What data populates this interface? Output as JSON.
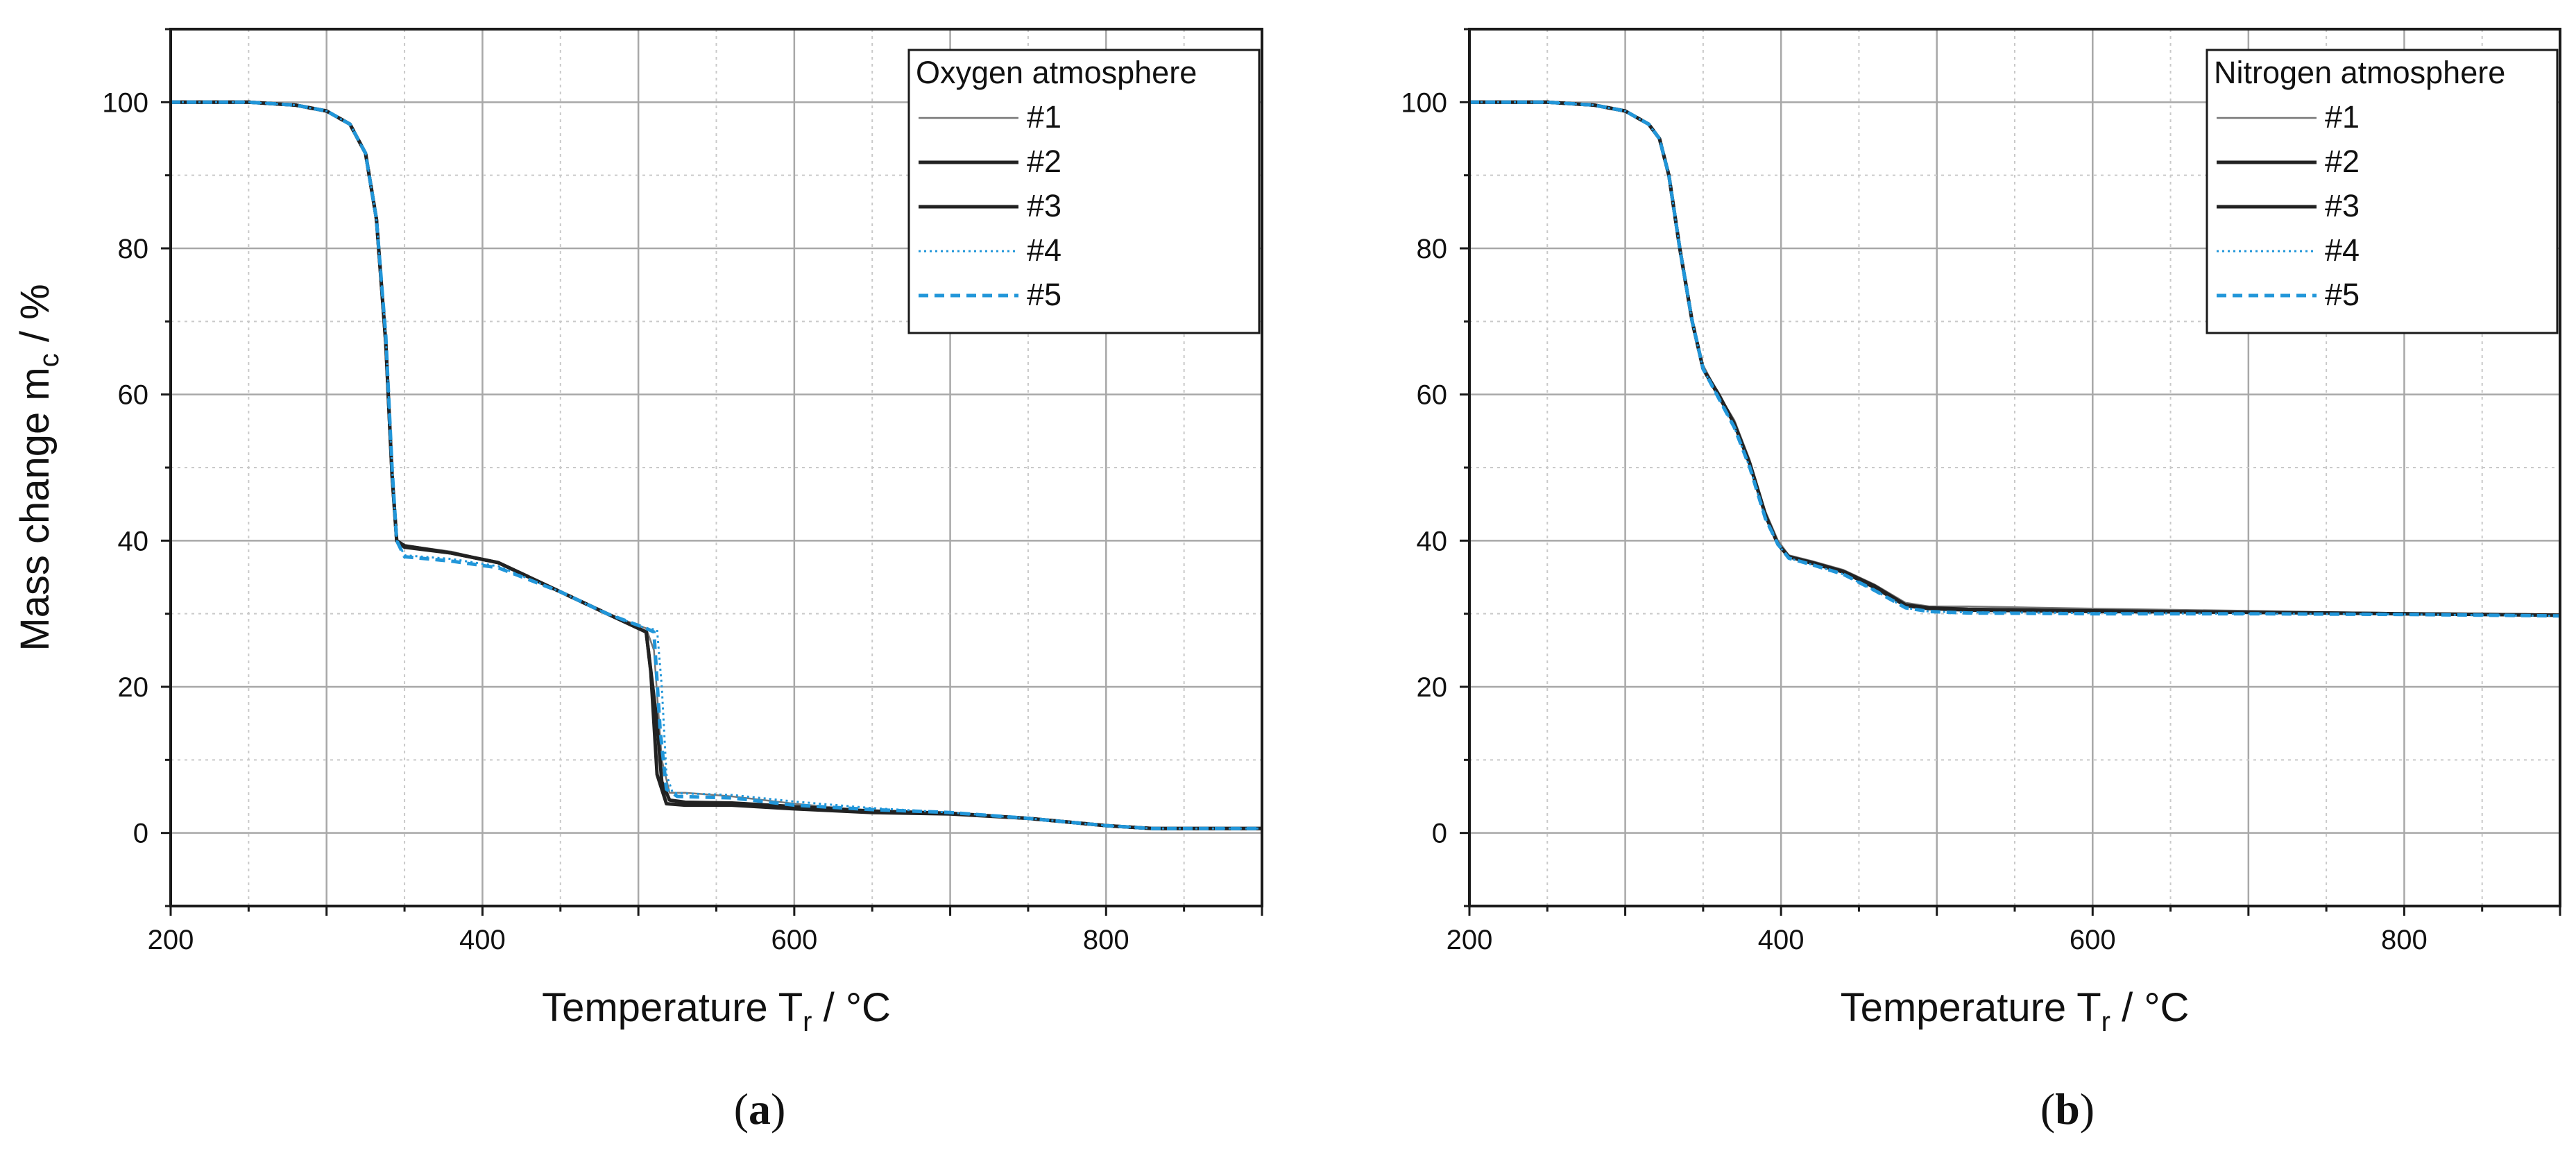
{
  "chart_data": [
    {
      "type": "line",
      "panel_caption": "a",
      "caption_open": "(",
      "caption_close": ")",
      "legend_title": "Oxygen atmosphere",
      "xlabel": {
        "main": "Temperature T",
        "sub": "r",
        "suffix": " / °C"
      },
      "ylabel": {
        "main": "Mass change m",
        "sub": "c",
        "suffix": " / %"
      },
      "xlim": [
        200,
        900
      ],
      "ylim": [
        -10,
        110
      ],
      "xticks": [
        200,
        400,
        600,
        800
      ],
      "yticks": [
        0,
        20,
        40,
        60,
        80,
        100
      ],
      "grid": true,
      "legend_position": "top-right",
      "series": [
        {
          "name": "#1",
          "color": "#777777",
          "style": "solid-thin",
          "x": [
            200,
            250,
            280,
            300,
            315,
            325,
            332,
            338,
            342,
            345,
            350,
            380,
            410,
            450,
            480,
            505,
            510,
            515,
            520,
            530,
            560,
            600,
            650,
            700,
            750,
            800,
            830,
            900
          ],
          "y": [
            100,
            100,
            99.6,
            98.8,
            97,
            93,
            84,
            68,
            50,
            40,
            39.4,
            38.5,
            37,
            33,
            30,
            28,
            25,
            10,
            5.5,
            5.5,
            5,
            4,
            3,
            2.8,
            2,
            1,
            0.6,
            0.6
          ]
        },
        {
          "name": "#2",
          "color": "#222222",
          "style": "solid",
          "x": [
            200,
            250,
            280,
            300,
            315,
            325,
            332,
            338,
            342,
            345,
            350,
            380,
            410,
            450,
            480,
            505,
            508,
            512,
            518,
            530,
            560,
            600,
            650,
            700,
            750,
            800,
            830,
            900
          ],
          "y": [
            100,
            100,
            99.6,
            98.8,
            97,
            93,
            84,
            67,
            49,
            40,
            39.3,
            38.3,
            37,
            33,
            30,
            27.5,
            22,
            8,
            4,
            3.8,
            3.8,
            3.3,
            2.8,
            2.6,
            2,
            1,
            0.6,
            0.6
          ]
        },
        {
          "name": "#3",
          "color": "#222222",
          "style": "solid",
          "x": [
            200,
            250,
            280,
            300,
            315,
            325,
            332,
            338,
            342,
            345,
            350,
            380,
            410,
            450,
            480,
            505,
            512,
            515,
            520,
            530,
            560,
            600,
            650,
            700,
            750,
            800,
            830,
            900
          ],
          "y": [
            100,
            100,
            99.6,
            98.8,
            97,
            93,
            84,
            67,
            49,
            40,
            39.1,
            38.3,
            37,
            33,
            30,
            27.5,
            15,
            7,
            4.5,
            4.2,
            4.1,
            3.6,
            3,
            2.7,
            2,
            1,
            0.6,
            0.6
          ]
        },
        {
          "name": "#4",
          "color": "#2196d9",
          "style": "dotted",
          "x": [
            200,
            250,
            280,
            300,
            315,
            325,
            332,
            338,
            342,
            345,
            350,
            380,
            410,
            450,
            480,
            505,
            512,
            515,
            518,
            522,
            530,
            560,
            600,
            650,
            700,
            750,
            800,
            830,
            900
          ],
          "y": [
            100,
            100,
            99.6,
            98.8,
            97,
            93,
            84,
            68,
            50,
            40,
            38,
            37.5,
            36.5,
            33,
            30,
            28,
            27.8,
            20,
            8,
            5.5,
            5.4,
            5.2,
            4.3,
            3.4,
            2.8,
            2,
            1,
            0.6,
            0.6
          ]
        },
        {
          "name": "#5",
          "color": "#2196d9",
          "style": "dashed",
          "x": [
            200,
            250,
            280,
            300,
            315,
            325,
            332,
            338,
            342,
            345,
            350,
            380,
            410,
            450,
            480,
            505,
            510,
            514,
            518,
            525,
            560,
            600,
            650,
            700,
            750,
            800,
            830,
            900
          ],
          "y": [
            100,
            100,
            99.6,
            98.8,
            97,
            93,
            84,
            68,
            50,
            40,
            37.8,
            37.2,
            36.3,
            33,
            30,
            28,
            27.5,
            14,
            6,
            5,
            4.8,
            3.8,
            3.2,
            2.8,
            2,
            1,
            0.6,
            0.6
          ]
        }
      ]
    },
    {
      "type": "line",
      "panel_caption": "b",
      "caption_open": "(",
      "caption_close": ")",
      "legend_title": "Nitrogen atmosphere",
      "xlabel": {
        "main": "Temperature T",
        "sub": "r",
        "suffix": " / °C"
      },
      "ylabel": {
        "main": "",
        "sub": "",
        "suffix": ""
      },
      "xlim": [
        200,
        900
      ],
      "ylim": [
        -10,
        110
      ],
      "xticks": [
        200,
        400,
        600,
        800
      ],
      "yticks": [
        0,
        20,
        40,
        60,
        80,
        100
      ],
      "grid": true,
      "legend_position": "top-right",
      "series": [
        {
          "name": "#1",
          "color": "#777777",
          "style": "solid-thin",
          "x": [
            200,
            250,
            280,
            300,
            315,
            322,
            328,
            335,
            343,
            350,
            360,
            370,
            380,
            390,
            398,
            405,
            420,
            440,
            460,
            480,
            495,
            520,
            600,
            700,
            800,
            900
          ],
          "y": [
            100,
            100,
            99.6,
            98.8,
            97,
            95,
            90,
            80,
            70,
            64,
            60,
            56.5,
            51,
            44,
            40,
            38,
            37.2,
            36,
            34,
            31.5,
            31,
            31,
            30.7,
            30.4,
            30,
            29.9
          ]
        },
        {
          "name": "#2",
          "color": "#222222",
          "style": "solid",
          "x": [
            200,
            250,
            280,
            300,
            315,
            322,
            328,
            335,
            343,
            350,
            360,
            370,
            380,
            390,
            398,
            405,
            420,
            440,
            460,
            480,
            495,
            520,
            600,
            700,
            800,
            900
          ],
          "y": [
            100,
            100,
            99.6,
            98.8,
            97,
            95,
            90,
            80,
            70,
            63.5,
            60,
            56,
            50.5,
            43.5,
            39.5,
            37.8,
            37,
            35.8,
            33.8,
            31.2,
            30.8,
            30.6,
            30.4,
            30.2,
            30,
            29.8
          ]
        },
        {
          "name": "#3",
          "color": "#222222",
          "style": "solid",
          "x": [
            200,
            250,
            280,
            300,
            315,
            322,
            328,
            335,
            343,
            350,
            360,
            370,
            380,
            390,
            398,
            405,
            420,
            440,
            460,
            480,
            495,
            520,
            600,
            700,
            800,
            900
          ],
          "y": [
            100,
            100,
            99.6,
            98.8,
            97,
            95,
            90,
            80,
            70,
            63.5,
            59.8,
            56,
            50.5,
            43.5,
            39.5,
            37.8,
            36.9,
            35.7,
            33.6,
            31.1,
            30.7,
            30.5,
            30.3,
            30.2,
            30,
            29.8
          ]
        },
        {
          "name": "#4",
          "color": "#2196d9",
          "style": "dotted",
          "x": [
            200,
            250,
            280,
            300,
            315,
            322,
            328,
            335,
            343,
            350,
            360,
            370,
            380,
            390,
            398,
            405,
            420,
            440,
            460,
            480,
            495,
            520,
            600,
            700,
            800,
            900
          ],
          "y": [
            100,
            100,
            99.6,
            98.8,
            97,
            95,
            90,
            80,
            70,
            63.5,
            59.5,
            55.5,
            50,
            43,
            39.5,
            37.6,
            36.7,
            35.4,
            33.2,
            30.8,
            30.3,
            30.2,
            30.1,
            30,
            29.9,
            29.7
          ]
        },
        {
          "name": "#5",
          "color": "#2196d9",
          "style": "dashed",
          "x": [
            200,
            250,
            280,
            300,
            315,
            322,
            328,
            335,
            343,
            350,
            360,
            370,
            380,
            390,
            398,
            405,
            420,
            440,
            460,
            480,
            495,
            520,
            600,
            700,
            800,
            900
          ],
          "y": [
            100,
            100,
            99.6,
            98.8,
            97,
            95,
            90,
            80,
            70,
            63.5,
            59.5,
            55.5,
            50,
            43,
            39.5,
            37.6,
            36.7,
            35.4,
            33.2,
            30.8,
            30.3,
            30.1,
            30,
            30,
            29.9,
            29.7
          ]
        }
      ]
    }
  ]
}
